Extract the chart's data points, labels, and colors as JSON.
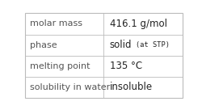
{
  "rows": [
    {
      "label": "molar mass",
      "value": "416.1 g/mol",
      "has_annotation": false,
      "annotation": ""
    },
    {
      "label": "phase",
      "value": "solid",
      "has_annotation": true,
      "annotation": "(at STP)"
    },
    {
      "label": "melting point",
      "value": "135 °C",
      "has_annotation": false,
      "annotation": ""
    },
    {
      "label": "solubility in water",
      "value": "insoluble",
      "has_annotation": false,
      "annotation": ""
    }
  ],
  "background_color": "#ffffff",
  "divider_color": "#bbbbbb",
  "border_color": "#bbbbbb",
  "col_split": 0.495,
  "label_font_size": 8.0,
  "value_font_size": 8.5,
  "annotation_font_size": 6.2,
  "label_color": "#555555",
  "value_color": "#222222"
}
